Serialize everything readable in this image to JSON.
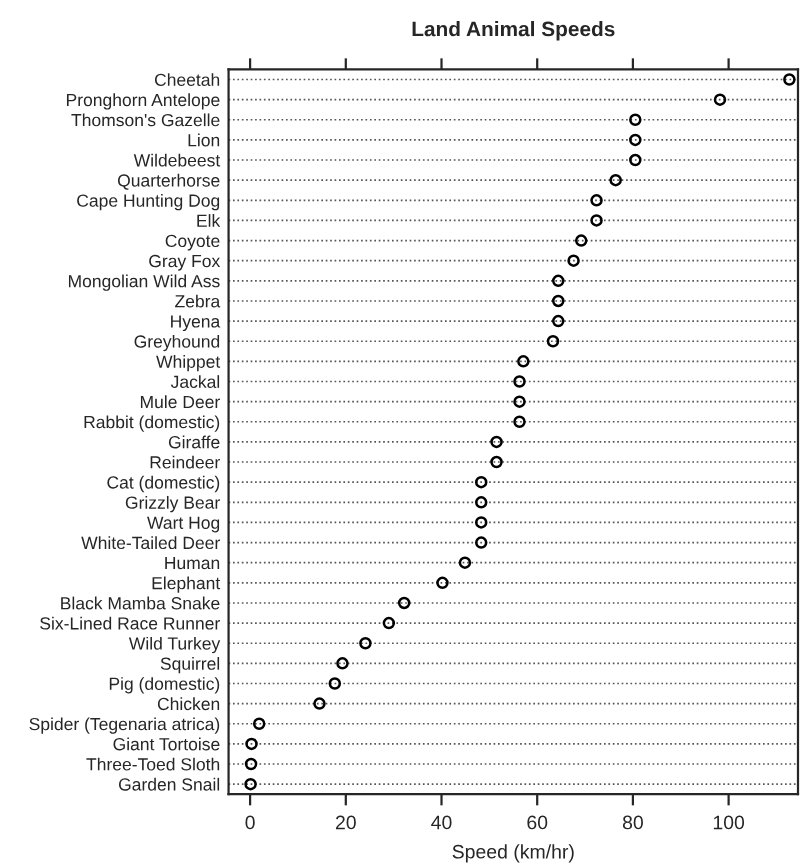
{
  "chart_data": {
    "type": "scatter",
    "title": "Land Animal Speeds",
    "xlabel": "Speed (km/hr)",
    "categories": [
      "Cheetah",
      "Pronghorn Antelope",
      "Thomson's Gazelle",
      "Lion",
      "Wildebeest",
      "Quarterhorse",
      "Cape Hunting Dog",
      "Elk",
      "Coyote",
      "Gray Fox",
      "Mongolian Wild Ass",
      "Zebra",
      "Hyena",
      "Greyhound",
      "Whippet",
      "Jackal",
      "Mule Deer",
      "Rabbit (domestic)",
      "Giraffe",
      "Reindeer",
      "Cat (domestic)",
      "Grizzly Bear",
      "Wart Hog",
      "White-Tailed Deer",
      "Human",
      "Elephant",
      "Black Mamba Snake",
      "Six-Lined Race Runner",
      "Wild Turkey",
      "Squirrel",
      "Pig (domestic)",
      "Chicken",
      "Spider (Tegenaria atrica)",
      "Giant Tortoise",
      "Three-Toed Sloth",
      "Garden Snail"
    ],
    "series": [
      {
        "color": "#000000",
        "values": [
          112.7,
          98.2,
          80.5,
          80.5,
          80.5,
          76.4,
          72.4,
          72.4,
          69.2,
          67.6,
          64.4,
          64.4,
          64.4,
          63.3,
          57.1,
          56.3,
          56.3,
          56.3,
          51.5,
          51.5,
          48.3,
          48.3,
          48.3,
          48.3,
          44.9,
          40.2,
          32.2,
          29.0,
          24.1,
          19.3,
          17.7,
          14.5,
          1.9,
          0.3,
          0.2,
          0.1
        ]
      }
    ],
    "xlim": [
      -4.5,
      114.5
    ],
    "xticks": [
      0,
      20,
      40,
      60,
      80,
      100
    ],
    "grid": "y",
    "line_style": "dotted",
    "marker": "circle",
    "orientation": "horizontal"
  }
}
